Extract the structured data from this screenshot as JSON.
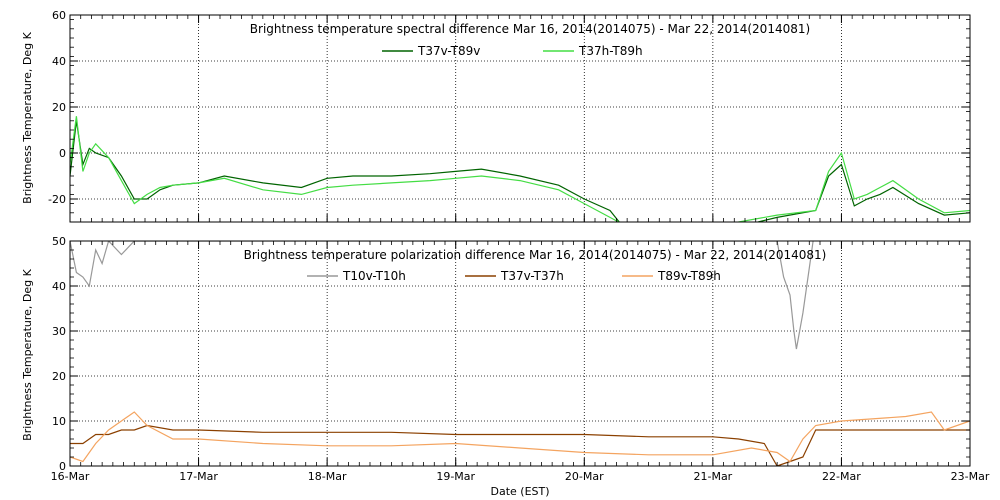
{
  "chart_data": [
    {
      "type": "line",
      "title": "Brightness temperature spectral difference     Mar 16, 2014(2014075) - Mar 22, 2014(2014081)",
      "ylabel": "Brightness Temperature, Deg K",
      "ylim": [
        -30,
        60
      ],
      "yticks": [
        -20,
        0,
        20,
        40,
        60
      ],
      "xlim": [
        0,
        7
      ],
      "grid": true,
      "legend_position": "top-center",
      "series": [
        {
          "name": "T37v-T89v",
          "color": "#006400",
          "x": [
            0,
            0.05,
            0.1,
            0.15,
            0.2,
            0.3,
            0.4,
            0.5,
            0.6,
            0.7,
            0.8,
            1.0,
            1.2,
            1.5,
            1.8,
            2.0,
            2.2,
            2.5,
            2.8,
            3.0,
            3.2,
            3.5,
            3.8,
            4.0,
            4.2,
            4.3,
            4.4,
            4.6,
            4.8,
            5.0,
            5.2,
            5.5,
            5.8,
            5.9,
            6.0,
            6.1,
            6.2,
            6.3,
            6.4,
            6.6,
            6.8,
            7.0
          ],
          "values": [
            -10,
            14,
            -5,
            2,
            0,
            -2,
            -10,
            -20,
            -20,
            -16,
            -14,
            -13,
            -10,
            -13,
            -15,
            -11,
            -10,
            -10,
            -9,
            -8,
            -7,
            -10,
            -14,
            -20,
            -25,
            -32,
            -35,
            -35,
            -35,
            -35,
            -32,
            -28,
            -25,
            -10,
            -5,
            -23,
            -20,
            -18,
            -15,
            -22,
            -27,
            -26
          ]
        },
        {
          "name": "T37h-T89h",
          "color": "#44dd44",
          "x": [
            0,
            0.05,
            0.1,
            0.15,
            0.2,
            0.3,
            0.4,
            0.5,
            0.6,
            0.7,
            0.8,
            1.0,
            1.2,
            1.5,
            1.8,
            2.0,
            2.2,
            2.5,
            2.8,
            3.0,
            3.2,
            3.5,
            3.8,
            4.0,
            4.2,
            4.3,
            4.4,
            4.6,
            4.8,
            5.0,
            5.2,
            5.5,
            5.8,
            5.9,
            6.0,
            6.1,
            6.2,
            6.3,
            6.4,
            6.6,
            6.8,
            7.0
          ],
          "values": [
            -5,
            16,
            -8,
            0,
            4,
            -2,
            -12,
            -22,
            -18,
            -15,
            -14,
            -13,
            -11,
            -16,
            -18,
            -15,
            -14,
            -13,
            -12,
            -11,
            -10,
            -12,
            -16,
            -22,
            -28,
            -31,
            -34,
            -34,
            -33,
            -32,
            -30,
            -27,
            -25,
            -8,
            0,
            -20,
            -18,
            -15,
            -12,
            -20,
            -26,
            -25
          ]
        }
      ]
    },
    {
      "type": "line",
      "title": "Brightness temperature polarization difference     Mar 16, 2014(2014075) - Mar 22, 2014(2014081)",
      "ylabel": "Brightness Temperature, Deg K",
      "xlabel": "Date (EST)",
      "ylim": [
        0,
        50
      ],
      "yticks": [
        0,
        10,
        20,
        30,
        40,
        50
      ],
      "xlim": [
        0,
        7
      ],
      "xtick_labels": [
        "16-Mar",
        "17-Mar",
        "18-Mar",
        "19-Mar",
        "20-Mar",
        "21-Mar",
        "22-Mar",
        "23-Mar"
      ],
      "grid": true,
      "legend_position": "top-center",
      "series": [
        {
          "name": "T10v-T10h",
          "color": "#999999",
          "x": [
            0,
            0.05,
            0.1,
            0.15,
            0.2,
            0.25,
            0.3,
            0.4,
            0.5,
            0.56,
            5.5,
            5.55,
            5.6,
            5.63,
            5.65,
            5.7,
            5.75,
            5.78
          ],
          "values": [
            50,
            43,
            42,
            40,
            48,
            45,
            50,
            47,
            50,
            50,
            50,
            42,
            38,
            30,
            26,
            34,
            44,
            50
          ]
        },
        {
          "name": "T37v-T37h",
          "color": "#8b4000",
          "x": [
            0,
            0.1,
            0.2,
            0.3,
            0.4,
            0.5,
            0.6,
            0.8,
            1.0,
            1.5,
            2.0,
            2.5,
            3.0,
            3.5,
            4.0,
            4.5,
            5.0,
            5.2,
            5.4,
            5.5,
            5.6,
            5.7,
            5.8,
            6.0,
            6.5,
            7.0
          ],
          "values": [
            5,
            5,
            7,
            7,
            8,
            8,
            9,
            8,
            8,
            7.5,
            7.5,
            7.5,
            7,
            7,
            7,
            6.5,
            6.5,
            6,
            5,
            0,
            1,
            2,
            8,
            8,
            8,
            8
          ]
        },
        {
          "name": "T89v-T89h",
          "color": "#f4a460",
          "x": [
            0,
            0.1,
            0.2,
            0.3,
            0.4,
            0.5,
            0.6,
            0.8,
            1.0,
            1.5,
            2.0,
            2.5,
            3.0,
            3.5,
            4.0,
            4.5,
            5.0,
            5.3,
            5.5,
            5.6,
            5.7,
            5.8,
            6.0,
            6.5,
            6.7,
            6.8,
            7.0
          ],
          "values": [
            2,
            1,
            5,
            8,
            10,
            12,
            9,
            6,
            6,
            5,
            4.5,
            4.5,
            5,
            4,
            3,
            2.5,
            2.5,
            4,
            3,
            1,
            6,
            9,
            10,
            11,
            12,
            8,
            10
          ]
        }
      ]
    }
  ]
}
